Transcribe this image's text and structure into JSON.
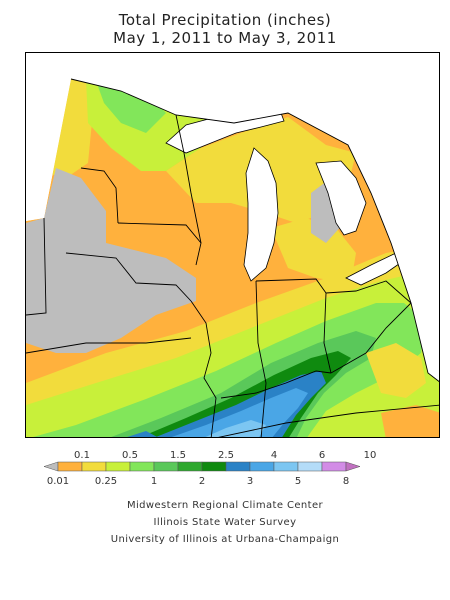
{
  "title": {
    "line1": "Total Precipitation (inches)",
    "line2": "May 1, 2011 to May 3, 2011"
  },
  "legend": {
    "bins": [
      {
        "color": "#bdbdbd"
      },
      {
        "color": "#ffb13d"
      },
      {
        "color": "#f2dc3c"
      },
      {
        "color": "#c8f03a"
      },
      {
        "color": "#82e65a"
      },
      {
        "color": "#5ac85a"
      },
      {
        "color": "#2ea82e"
      },
      {
        "color": "#0f8a0f"
      },
      {
        "color": "#2a82c6"
      },
      {
        "color": "#4aa6e6"
      },
      {
        "color": "#7cc6f2"
      },
      {
        "color": "#b4dcf8"
      },
      {
        "color": "#d28ce6"
      },
      {
        "color": "#c070c0"
      }
    ],
    "labels_top": [
      "0.1",
      "0.5",
      "1.5",
      "2.5",
      "4",
      "6",
      "10"
    ],
    "labels_bottom": [
      "0.01",
      "0.25",
      "1",
      "2",
      "3",
      "5",
      "8"
    ]
  },
  "credits": {
    "line1": "Midwestern Regional Climate Center",
    "line2": "Illinois State Water Survey",
    "line3": "University of Illinois at Urbana-Champaign"
  },
  "colors": {
    "lake": "#ffffff",
    "border": "#000000"
  }
}
